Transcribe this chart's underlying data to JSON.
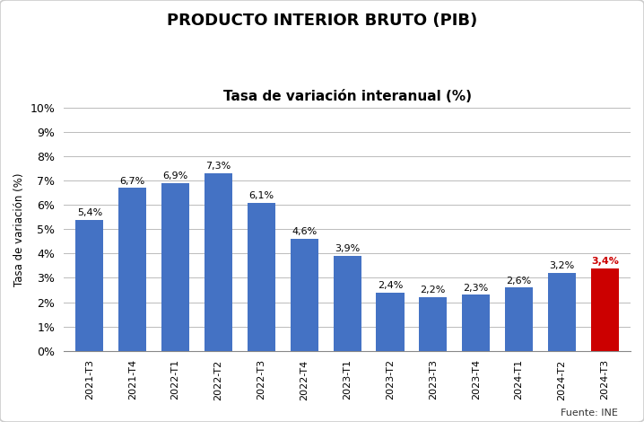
{
  "title_line1": "PRODUCTO INTERIOR BRUTO (PIB)",
  "title_line2": "Tasa de variación interanual (%)",
  "categories": [
    "2021-T3",
    "2021-T4",
    "2022-T1",
    "2022-T2",
    "2022-T3",
    "2022-T4",
    "2023-T1",
    "2023-T2",
    "2023-T3",
    "2023-T4",
    "2024-T1",
    "2024-T2",
    "2024-T3"
  ],
  "values": [
    5.4,
    6.7,
    6.9,
    7.3,
    6.1,
    4.6,
    3.9,
    2.4,
    2.2,
    2.3,
    2.6,
    3.2,
    3.4
  ],
  "bar_colors": [
    "#4472C4",
    "#4472C4",
    "#4472C4",
    "#4472C4",
    "#4472C4",
    "#4472C4",
    "#4472C4",
    "#4472C4",
    "#4472C4",
    "#4472C4",
    "#4472C4",
    "#4472C4",
    "#CC0000"
  ],
  "labels": [
    "5,4%",
    "6,7%",
    "6,9%",
    "7,3%",
    "6,1%",
    "4,6%",
    "3,9%",
    "2,4%",
    "2,2%",
    "2,3%",
    "2,6%",
    "3,2%",
    "3,4%"
  ],
  "ylabel": "Tasa de variación (%)",
  "ylim": [
    0,
    10
  ],
  "yticks": [
    0,
    1,
    2,
    3,
    4,
    5,
    6,
    7,
    8,
    9,
    10
  ],
  "ytick_labels": [
    "0%",
    "1%",
    "2%",
    "3%",
    "4%",
    "5%",
    "6%",
    "7%",
    "8%",
    "9%",
    "10%"
  ],
  "footnote": "Fuente: INE",
  "background_color": "#FFFFFF",
  "grid_color": "#BBBBBB",
  "bar_width": 0.65,
  "title1_fontsize": 13,
  "title2_fontsize": 11,
  "label_fontsize": 8.0,
  "ytick_fontsize": 9,
  "xtick_fontsize": 8.0,
  "ylabel_fontsize": 8.5
}
